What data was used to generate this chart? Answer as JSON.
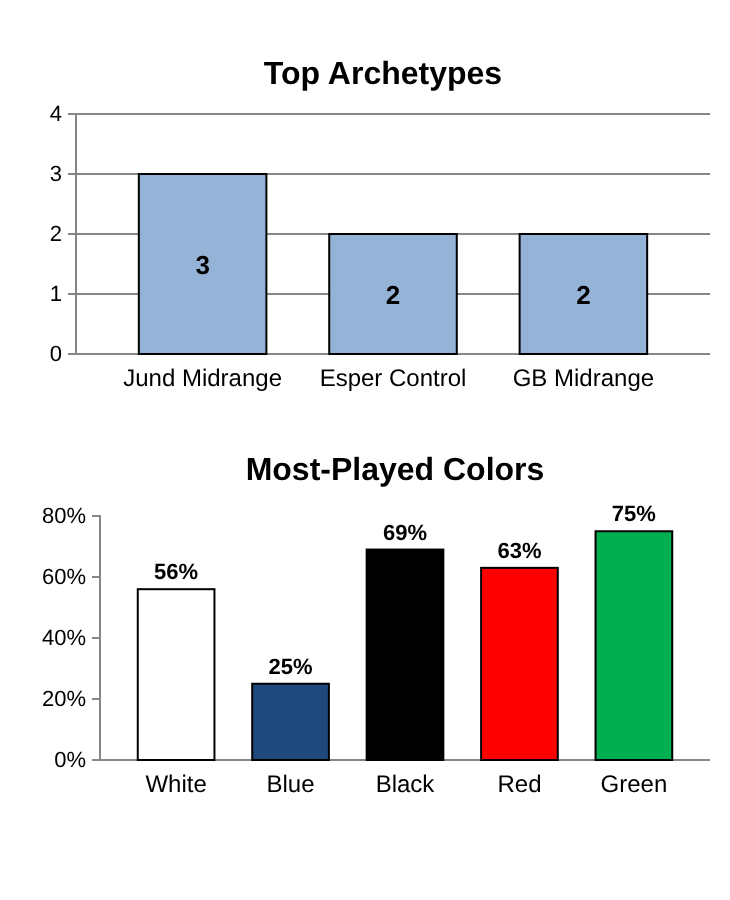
{
  "chart_data": [
    {
      "type": "bar",
      "title": "Top Archetypes",
      "categories": [
        "Jund Midrange",
        "Esper Control",
        "GB Midrange"
      ],
      "values": [
        3,
        2,
        2
      ],
      "color": "#95b3d7",
      "ylim": [
        0,
        4
      ],
      "yticks": [
        0,
        1,
        2,
        3,
        4
      ],
      "grid": "y",
      "data_labels": true
    },
    {
      "type": "bar",
      "title": "Most-Played Colors",
      "categories": [
        "White",
        "Blue",
        "Black",
        "Red",
        "Green"
      ],
      "values": [
        56,
        25,
        69,
        63,
        75
      ],
      "colors": [
        "#ffffff",
        "#1f497d",
        "#000000",
        "#ff0000",
        "#00b050"
      ],
      "value_labels": [
        "56%",
        "25%",
        "69%",
        "63%",
        "75%"
      ],
      "ylim": [
        0,
        80
      ],
      "yticks": [
        {
          "value": 0,
          "label": "0%"
        },
        {
          "value": 20,
          "label": "20%"
        },
        {
          "value": 40,
          "label": "40%"
        },
        {
          "value": 60,
          "label": "60%"
        },
        {
          "value": 80,
          "label": "80%"
        }
      ],
      "grid": false
    }
  ]
}
